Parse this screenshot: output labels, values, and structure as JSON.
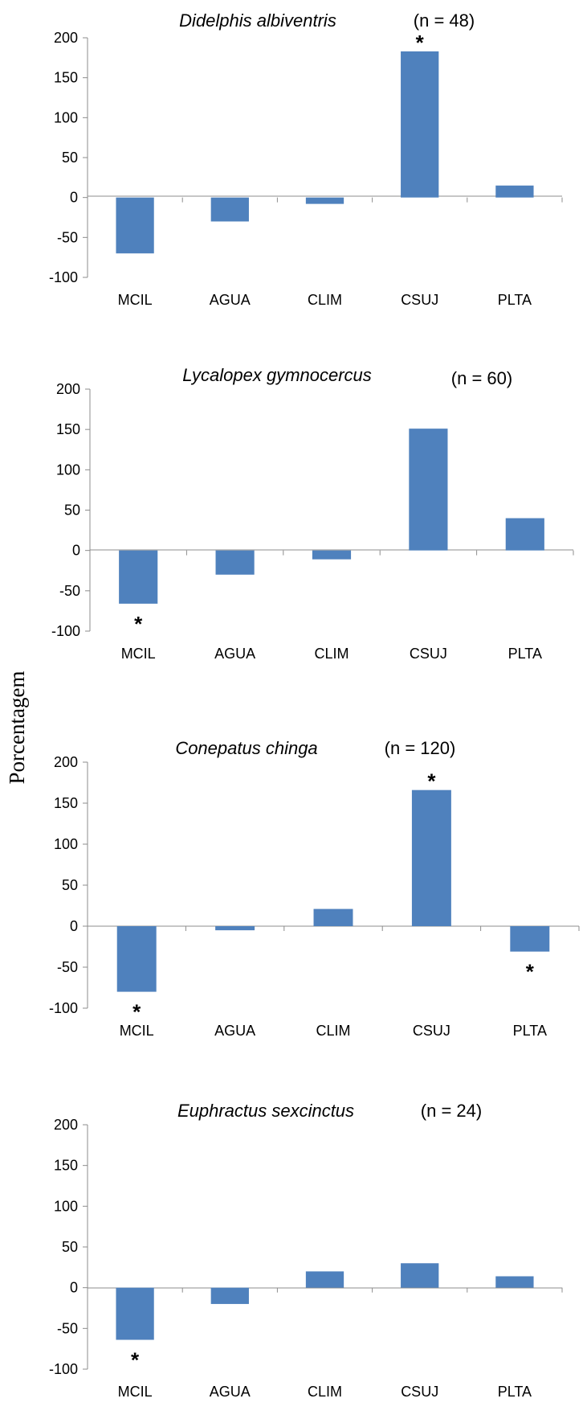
{
  "ylabel": "Porcentagem",
  "colors": {
    "bar": "#4f81bd",
    "axis": "#8c8c8c"
  },
  "chart_data": [
    {
      "type": "bar",
      "title": "Didelphis albiventris",
      "n_label": "(n = 48)",
      "categories": [
        "MCIL",
        "AGUA",
        "CLIM",
        "CSUJ",
        "PLTA"
      ],
      "values": [
        -70,
        -30,
        -8,
        183,
        15
      ],
      "significant": [
        false,
        false,
        false,
        true,
        false
      ],
      "ylim": [
        -100,
        200
      ],
      "yticks": [
        "200",
        "150",
        "100",
        "50",
        "0",
        "-50",
        "-100"
      ]
    },
    {
      "type": "bar",
      "title": "Lycalopex gymnocercus",
      "n_label": "(n = 60)",
      "categories": [
        "MCIL",
        "AGUA",
        "CLIM",
        "CSUJ",
        "PLTA"
      ],
      "values": [
        -66,
        -30,
        -11,
        151,
        40
      ],
      "significant": [
        true,
        false,
        false,
        false,
        false
      ],
      "ylim": [
        -100,
        200
      ],
      "yticks": [
        "200",
        "150",
        "100",
        "50",
        "0",
        "-50",
        "-100"
      ]
    },
    {
      "type": "bar",
      "title": "Conepatus chinga",
      "n_label": "(n = 120)",
      "categories": [
        "MCIL",
        "AGUA",
        "CLIM",
        "CSUJ",
        "PLTA"
      ],
      "values": [
        -80,
        -5,
        21,
        166,
        -31
      ],
      "significant": [
        true,
        false,
        false,
        true,
        true
      ],
      "ylim": [
        -100,
        200
      ],
      "yticks": [
        "200",
        "150",
        "100",
        "50",
        "0",
        "-50",
        "-100"
      ]
    },
    {
      "type": "bar",
      "title": "Euphractus sexcinctus",
      "n_label": "(n = 24)",
      "categories": [
        "MCIL",
        "AGUA",
        "CLIM",
        "CSUJ",
        "PLTA"
      ],
      "values": [
        -64,
        -20,
        20,
        30,
        14
      ],
      "significant": [
        true,
        false,
        false,
        false,
        false
      ],
      "ylim": [
        -100,
        200
      ],
      "yticks": [
        "200",
        "150",
        "100",
        "50",
        "0",
        "-50",
        "-100"
      ]
    }
  ]
}
